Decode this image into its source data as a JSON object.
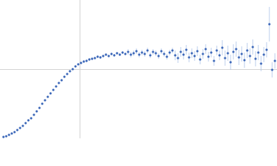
{
  "chart_data": {
    "type": "scatter",
    "xlim": [
      0,
      400
    ],
    "ylim": [
      0,
      200
    ],
    "series": [
      {
        "color": "#3a66b8",
        "error_color": "#a9bfe6",
        "x": [
          5,
          9,
          13,
          17,
          21,
          25,
          29,
          33,
          37,
          41,
          45,
          49,
          53,
          57,
          61,
          65,
          69,
          73,
          77,
          81,
          85,
          89,
          93,
          97,
          101,
          105,
          109,
          113,
          117,
          121,
          125,
          129,
          133,
          137,
          141,
          145,
          149,
          153,
          157,
          161,
          165,
          169,
          173,
          177,
          181,
          185,
          189,
          193,
          197,
          201,
          205,
          209,
          213,
          217,
          221,
          225,
          229,
          233,
          237,
          241,
          245,
          249,
          253,
          257,
          261,
          265,
          269,
          273,
          277,
          281,
          285,
          289,
          293,
          297,
          301,
          305,
          309,
          313,
          317,
          321,
          325,
          329,
          333,
          337,
          341,
          345,
          349,
          353,
          357,
          361,
          365,
          369,
          373,
          377,
          381,
          385,
          389,
          393,
          397
        ],
        "values": [
          2,
          3,
          5,
          7,
          9,
          12,
          15,
          18,
          22,
          26,
          29,
          34,
          39,
          44,
          50,
          55,
          60,
          65,
          70,
          75,
          80,
          84,
          89,
          93,
          97,
          100,
          104,
          107,
          109,
          111,
          112,
          114,
          115,
          116,
          118,
          117,
          119,
          121,
          119,
          122,
          120,
          123,
          121,
          124,
          122,
          125,
          121,
          123,
          126,
          121,
          124,
          122,
          127,
          120,
          125,
          123,
          119,
          126,
          122,
          118,
          124,
          127,
          120,
          116,
          125,
          121,
          128,
          117,
          123,
          119,
          126,
          114,
          122,
          129,
          118,
          124,
          112,
          127,
          120,
          131,
          116,
          123,
          110,
          125,
          129,
          117,
          122,
          113,
          127,
          119,
          132,
          115,
          124,
          108,
          121,
          128,
          165,
          99,
          112
        ],
        "errors": [
          1,
          1,
          1,
          1,
          1,
          1,
          1,
          1,
          1,
          1,
          1,
          1,
          1,
          1,
          1,
          1,
          1,
          1,
          1,
          1,
          1,
          1,
          1,
          1,
          1,
          1,
          1,
          1,
          2,
          2,
          2,
          2,
          2,
          2,
          2,
          2,
          2,
          2,
          2,
          2,
          2,
          2,
          2,
          2,
          2,
          4,
          4,
          4,
          4,
          4,
          4,
          4,
          4,
          4,
          4,
          4,
          4,
          4,
          4,
          4,
          4,
          4,
          7,
          7,
          7,
          7,
          7,
          7,
          7,
          7,
          7,
          7,
          7,
          7,
          7,
          7,
          7,
          7,
          7,
          11,
          11,
          11,
          11,
          11,
          11,
          11,
          11,
          11,
          11,
          11,
          11,
          11,
          11,
          11,
          11,
          11,
          25,
          11,
          11
        ]
      }
    ]
  }
}
